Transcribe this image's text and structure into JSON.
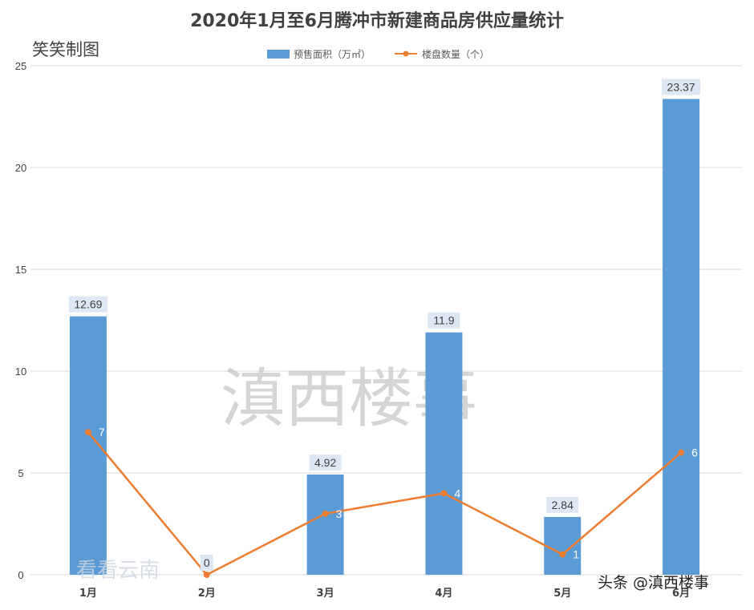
{
  "title": "2020年1月至6月腾冲市新建商品房供应量统计",
  "maker_note": "笑笑制图",
  "watermarks": {
    "main": "滇西楼事",
    "corner": "看看云南",
    "author": "头条 @滇西楼事"
  },
  "colors": {
    "bar": "#5b9bd5",
    "line": "#ed7d31",
    "grid": "#d9d9d9",
    "label_bg": "#dde8f4"
  },
  "chart_data": {
    "type": "bar",
    "categories": [
      "1月",
      "2月",
      "3月",
      "4月",
      "5月",
      "6月"
    ],
    "series": [
      {
        "name": "预售面积（万㎡）",
        "type": "bar",
        "axis": "left",
        "values": [
          12.69,
          0,
          4.92,
          11.9,
          2.84,
          23.37
        ]
      },
      {
        "name": "楼盘数量（个）",
        "type": "line",
        "axis": "left",
        "values": [
          7,
          0,
          3,
          4,
          1,
          6
        ]
      }
    ],
    "bar_labels": [
      "12.69",
      "0",
      "4.92",
      "11.9",
      "2.84",
      "23.37"
    ],
    "line_labels": [
      "7",
      "",
      "3",
      "4",
      "1",
      "6"
    ],
    "ylim": [
      0,
      25
    ],
    "yticks": [
      "0",
      "5",
      "10",
      "15",
      "20",
      "25"
    ],
    "xlabel": "",
    "ylabel": "",
    "grid": true,
    "legend_position": "top-center"
  }
}
